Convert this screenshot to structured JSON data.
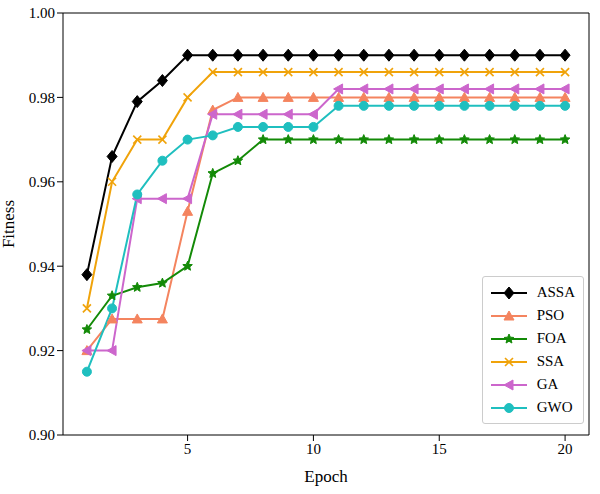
{
  "chart_data": {
    "type": "line",
    "x_label": "Epoch",
    "y_label": "Fitness",
    "x": [
      1,
      2,
      3,
      4,
      5,
      6,
      7,
      8,
      9,
      10,
      11,
      12,
      13,
      14,
      15,
      16,
      17,
      18,
      19,
      20
    ],
    "xlim": [
      0.05,
      20.95
    ],
    "xticks": [
      5,
      10,
      15,
      20
    ],
    "ylim": [
      0.9,
      1.0
    ],
    "yticks": [
      {
        "value": 0.9,
        "label": "0.90"
      },
      0.92,
      0.94,
      0.96,
      0.98,
      {
        "value": 1.0,
        "label": "1.00"
      }
    ],
    "grid": false,
    "legend": "lower right",
    "series": [
      {
        "name": "ASSA",
        "color": "#000000",
        "marker": "diamond",
        "values": [
          0.938,
          0.966,
          0.979,
          0.984,
          0.99,
          0.99,
          0.99,
          0.99,
          0.99,
          0.99,
          0.99,
          0.99,
          0.99,
          0.99,
          0.99,
          0.99,
          0.99,
          0.99,
          0.99,
          0.99
        ]
      },
      {
        "name": "PSO",
        "color": "#f4845f",
        "marker": "triangle-up",
        "values": [
          0.92,
          0.9275,
          0.9275,
          0.9275,
          0.953,
          0.977,
          0.98,
          0.98,
          0.98,
          0.98,
          0.98,
          0.98,
          0.98,
          0.98,
          0.98,
          0.98,
          0.98,
          0.98,
          0.98,
          0.98
        ]
      },
      {
        "name": "FOA",
        "color": "#138a07",
        "marker": "star",
        "values": [
          0.925,
          0.933,
          0.935,
          0.936,
          0.94,
          0.962,
          0.965,
          0.97,
          0.97,
          0.97,
          0.97,
          0.97,
          0.97,
          0.97,
          0.97,
          0.97,
          0.97,
          0.97,
          0.97,
          0.97
        ]
      },
      {
        "name": "SSA",
        "color": "#f0a30a",
        "marker": "x",
        "values": [
          0.93,
          0.96,
          0.97,
          0.97,
          0.98,
          0.986,
          0.986,
          0.986,
          0.986,
          0.986,
          0.986,
          0.986,
          0.986,
          0.986,
          0.986,
          0.986,
          0.986,
          0.986,
          0.986,
          0.986
        ]
      },
      {
        "name": "GA",
        "color": "#cc66cc",
        "marker": "triangle-left",
        "values": [
          0.92,
          0.92,
          0.956,
          0.956,
          0.956,
          0.976,
          0.976,
          0.976,
          0.976,
          0.976,
          0.982,
          0.982,
          0.982,
          0.982,
          0.982,
          0.982,
          0.982,
          0.982,
          0.982,
          0.982
        ]
      },
      {
        "name": "GWO",
        "color": "#1fbfbf",
        "marker": "circle",
        "values": [
          0.915,
          0.93,
          0.957,
          0.965,
          0.97,
          0.971,
          0.973,
          0.973,
          0.973,
          0.973,
          0.978,
          0.978,
          0.978,
          0.978,
          0.978,
          0.978,
          0.978,
          0.978,
          0.978,
          0.978
        ]
      }
    ]
  }
}
